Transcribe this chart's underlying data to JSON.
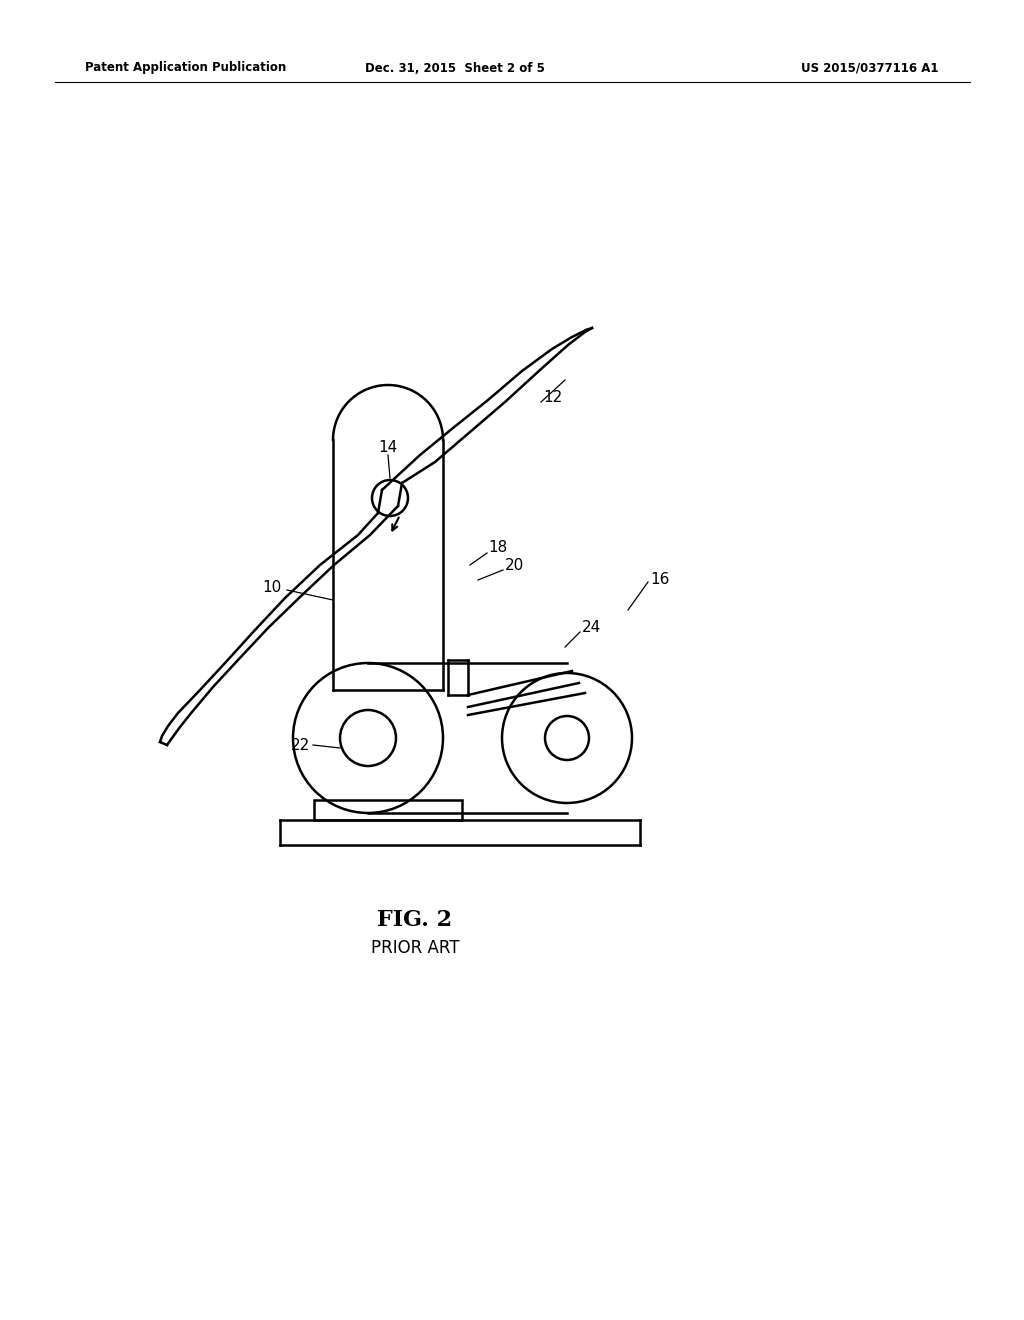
{
  "bg_color": "#ffffff",
  "line_color": "#000000",
  "header_left": "Patent Application Publication",
  "header_center": "Dec. 31, 2015  Sheet 2 of 5",
  "header_right": "US 2015/0377116 A1",
  "fig_label": "FIG. 2",
  "fig_sublabel": "PRIOR ART"
}
